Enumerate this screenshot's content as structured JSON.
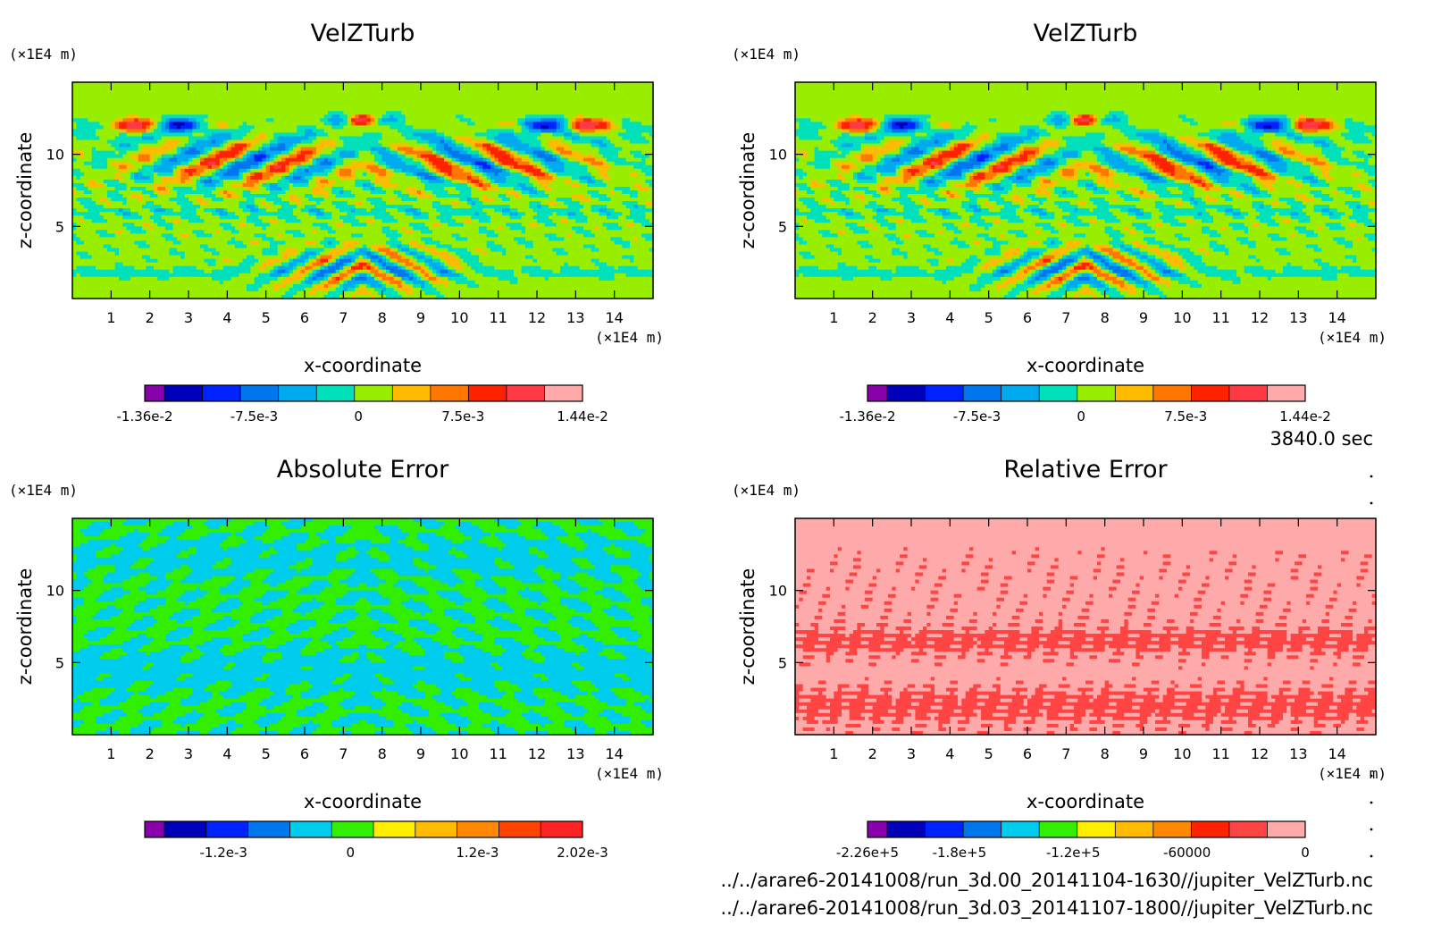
{
  "time_label": "3840.0 sec",
  "footer": {
    "file1": "../../arare6-20141008/run_3d.00_20141104-1630//jupiter_VelZTurb.nc",
    "file2": "../../arare6-20141008/run_3d.03_20141107-1800//jupiter_VelZTurb.nc"
  },
  "chart_data": [
    {
      "type": "heatmap",
      "title": "VelZTurb",
      "xlabel": "x-coordinate",
      "ylabel": "z-coordinate",
      "x_unit": "(×1E4 m)",
      "y_unit": "(×1E4 m)",
      "xlim": [
        0,
        15
      ],
      "ylim": [
        0,
        15
      ],
      "xticks": [
        1,
        2,
        3,
        4,
        5,
        6,
        7,
        8,
        9,
        10,
        11,
        12,
        13,
        14
      ],
      "yticks": [
        5,
        10
      ],
      "field": "velz",
      "colors": [
        "#8800aa",
        "#0000bb",
        "#0022ff",
        "#0077ee",
        "#00aaee",
        "#00e0bb",
        "#99ee00",
        "#ffbb00",
        "#ff7700",
        "#ff2200",
        "#ff3a44",
        "#ffaaaa"
      ],
      "colorbar_labels": [
        {
          "text": "-1.36e-2",
          "pos": 0
        },
        {
          "text": "-7.5e-3",
          "pos": 0.25
        },
        {
          "text": "0",
          "pos": 0.488
        },
        {
          "text": "7.5e-3",
          "pos": 0.727
        },
        {
          "text": "1.44e-2",
          "pos": 1
        }
      ]
    },
    {
      "type": "heatmap",
      "title": "VelZTurb",
      "xlabel": "x-coordinate",
      "ylabel": "z-coordinate",
      "x_unit": "(×1E4 m)",
      "y_unit": "(×1E4 m)",
      "xlim": [
        0,
        15
      ],
      "ylim": [
        0,
        15
      ],
      "xticks": [
        1,
        2,
        3,
        4,
        5,
        6,
        7,
        8,
        9,
        10,
        11,
        12,
        13,
        14
      ],
      "yticks": [
        5,
        10
      ],
      "field": "velz",
      "colors": [
        "#8800aa",
        "#0000bb",
        "#0022ff",
        "#0077ee",
        "#00aaee",
        "#00e0bb",
        "#99ee00",
        "#ffbb00",
        "#ff7700",
        "#ff2200",
        "#ff3a44",
        "#ffaaaa"
      ],
      "colorbar_labels": [
        {
          "text": "-1.36e-2",
          "pos": 0
        },
        {
          "text": "-7.5e-3",
          "pos": 0.25
        },
        {
          "text": "0",
          "pos": 0.488
        },
        {
          "text": "7.5e-3",
          "pos": 0.727
        },
        {
          "text": "1.44e-2",
          "pos": 1
        }
      ]
    },
    {
      "type": "heatmap",
      "title": "Absolute Error",
      "xlabel": "x-coordinate",
      "ylabel": "z-coordinate",
      "x_unit": "(×1E4 m)",
      "y_unit": "(×1E4 m)",
      "xlim": [
        0,
        15
      ],
      "ylim": [
        0,
        15
      ],
      "xticks": [
        1,
        2,
        3,
        4,
        5,
        6,
        7,
        8,
        9,
        10,
        11,
        12,
        13,
        14
      ],
      "yticks": [
        5,
        10
      ],
      "field": "abs",
      "colors": [
        "#8800aa",
        "#0000bb",
        "#0022ff",
        "#0077ee",
        "#00ccee",
        "#33ee00",
        "#ffee00",
        "#ffbb00",
        "#ff8800",
        "#ff4400",
        "#ff2222"
      ],
      "colorbar_labels": [
        {
          "text": "-1.2e-3",
          "pos": 0.18
        },
        {
          "text": "0",
          "pos": 0.47
        },
        {
          "text": "1.2e-3",
          "pos": 0.76
        },
        {
          "text": "2.02e-3",
          "pos": 1
        }
      ]
    },
    {
      "type": "heatmap",
      "title": "Relative Error",
      "xlabel": "x-coordinate",
      "ylabel": "z-coordinate",
      "x_unit": "(×1E4 m)",
      "y_unit": "(×1E4 m)",
      "xlim": [
        0,
        15
      ],
      "ylim": [
        0,
        15
      ],
      "xticks": [
        1,
        2,
        3,
        4,
        5,
        6,
        7,
        8,
        9,
        10,
        11,
        12,
        13,
        14
      ],
      "yticks": [
        5,
        10
      ],
      "field": "rel",
      "colors": [
        "#8800aa",
        "#0000bb",
        "#0022ff",
        "#0077ee",
        "#00ccee",
        "#33ee00",
        "#ffee00",
        "#ffbb00",
        "#ff8800",
        "#ff2200",
        "#ff4444",
        "#ffaaaa"
      ],
      "colorbar_labels": [
        {
          "text": "-2.26e+5",
          "pos": 0
        },
        {
          "text": "-1.8e+5",
          "pos": 0.21
        },
        {
          "text": "-1.2e+5",
          "pos": 0.47
        },
        {
          "text": "-60000",
          "pos": 0.73
        },
        {
          "text": "0",
          "pos": 1
        }
      ]
    }
  ]
}
